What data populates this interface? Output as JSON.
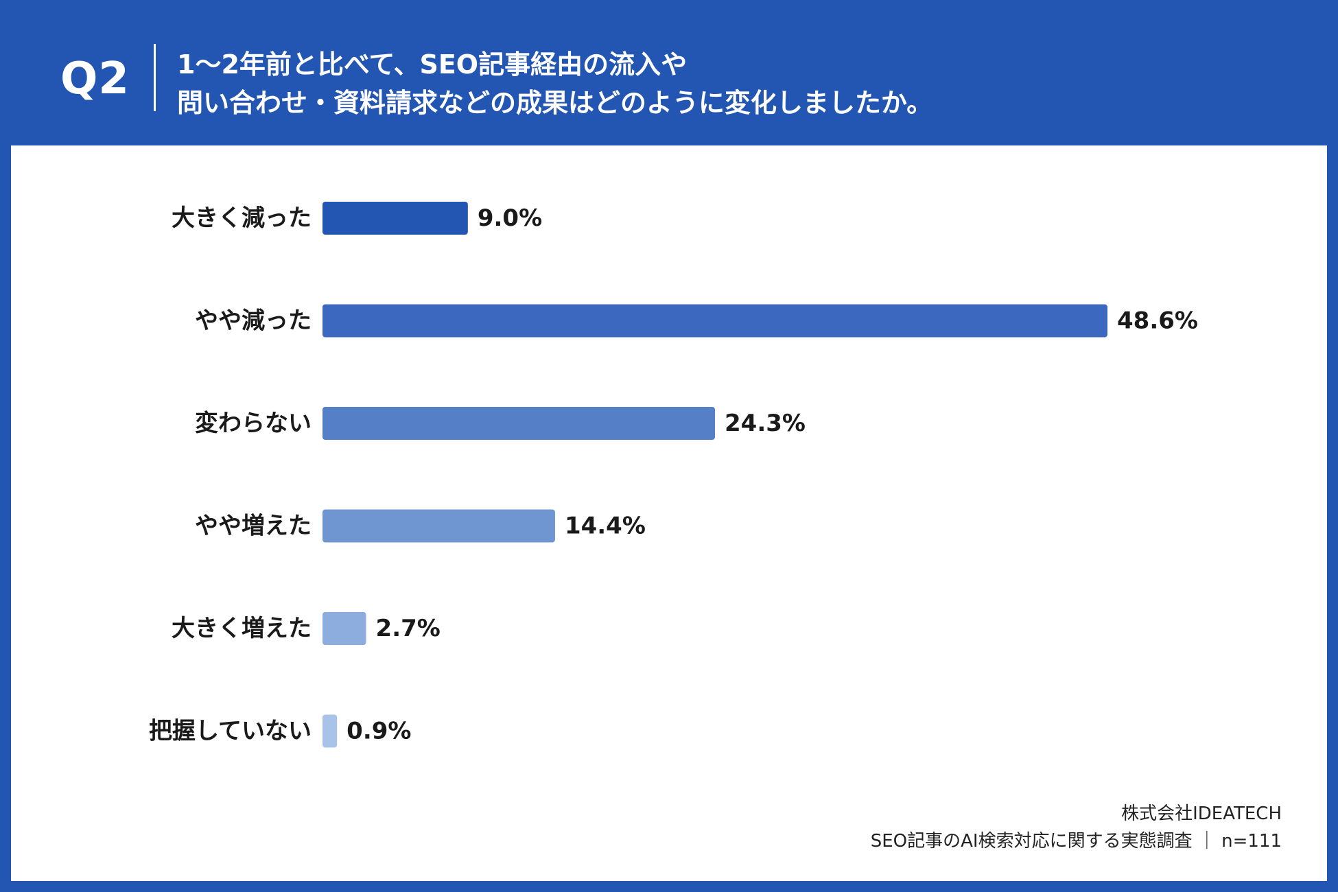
{
  "header": {
    "question_number": "Q2",
    "title_line1": "1～2年前と比べて、SEO記事経由の流入や",
    "title_line2": "問い合わせ・資料請求などの成果はどのように変化しましたか。"
  },
  "footer": {
    "company": "株式会社IDEATECH",
    "survey": "SEO記事のAI検索対応に関する実態調査 ｜ n=111"
  },
  "colors": {
    "background": "#2356b2",
    "panel": "#ffffff",
    "bars": [
      "#2356b2",
      "#3c68bf",
      "#5580c8",
      "#7096d2",
      "#8dadde",
      "#a9c3e8"
    ]
  },
  "chart_data": {
    "type": "bar",
    "orientation": "horizontal",
    "categories": [
      "大きく減った",
      "やや減った",
      "変わらない",
      "やや増えた",
      "大きく増えた",
      "把握していない"
    ],
    "values": [
      9.0,
      48.6,
      24.3,
      14.4,
      2.7,
      0.9
    ],
    "value_labels": [
      "9.0%",
      "48.6%",
      "24.3%",
      "14.4%",
      "2.7%",
      "0.9%"
    ],
    "unit": "%",
    "xlim": [
      0,
      48.6
    ],
    "grid": false,
    "legend": "none"
  }
}
